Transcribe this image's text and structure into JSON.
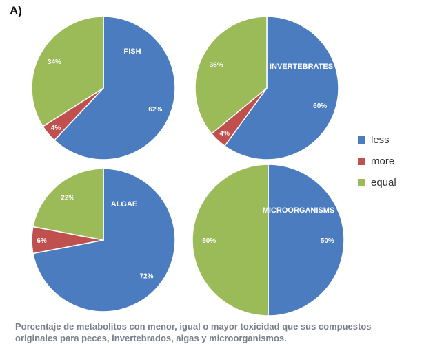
{
  "panel_label": "A)",
  "caption_line1": "Porcentaje de metabolitos con menor, igual o mayor toxicidad que sus compuestos",
  "caption_line2": "originales para peces, invertebrados, algas y microorganismos.",
  "colors": {
    "less": "#4a7cbf",
    "more": "#c0504d",
    "equal": "#9bbb59"
  },
  "chart_data": [
    {
      "type": "pie",
      "title": "FISH",
      "labels": [
        "less",
        "more",
        "equal"
      ],
      "values": [
        62,
        4,
        34
      ],
      "value_labels": [
        "62%",
        "4%",
        "34%"
      ]
    },
    {
      "type": "pie",
      "title": "INVERTEBRATES",
      "labels": [
        "less",
        "more",
        "equal"
      ],
      "values": [
        60,
        4,
        36
      ],
      "value_labels": [
        "60%",
        "4%",
        "36%"
      ]
    },
    {
      "type": "pie",
      "title": "ALGAE",
      "labels": [
        "less",
        "more",
        "equal"
      ],
      "values": [
        72,
        6,
        22
      ],
      "value_labels": [
        "72%",
        "6%",
        "22%"
      ]
    },
    {
      "type": "pie",
      "title": "MICROORGANISMS",
      "labels": [
        "less",
        "more",
        "equal"
      ],
      "values": [
        50,
        0,
        50
      ],
      "value_labels": [
        "50%",
        "",
        "50%"
      ]
    }
  ],
  "legend": [
    {
      "key": "less",
      "label": "less"
    },
    {
      "key": "more",
      "label": "more"
    },
    {
      "key": "equal",
      "label": "equal"
    }
  ]
}
